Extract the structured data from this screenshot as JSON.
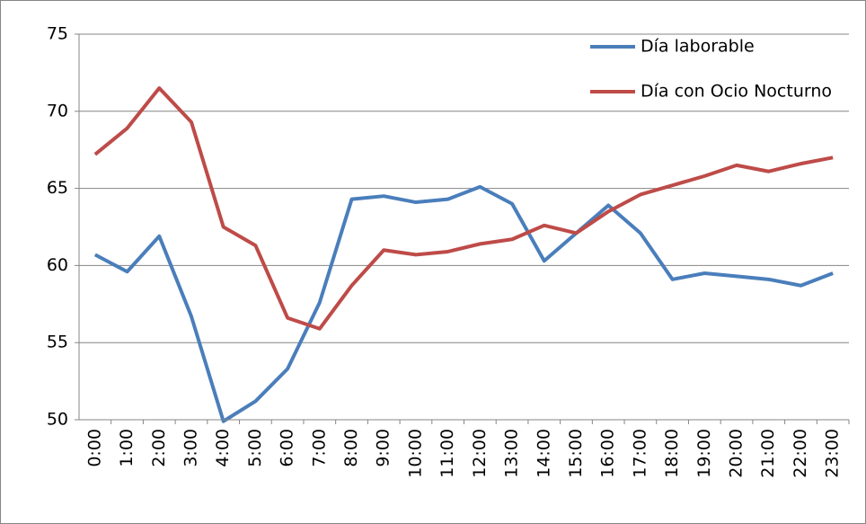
{
  "chart_data": {
    "type": "line",
    "categories": [
      "0:00",
      "1:00",
      "2:00",
      "3:00",
      "4:00",
      "5:00",
      "6:00",
      "7:00",
      "8:00",
      "9:00",
      "10:00",
      "11:00",
      "12:00",
      "13:00",
      "14:00",
      "15:00",
      "16:00",
      "17:00",
      "18:00",
      "19:00",
      "20:00",
      "21:00",
      "22:00",
      "23:00"
    ],
    "series": [
      {
        "name": "Día laborable",
        "color": "#4a7ebb",
        "values": [
          60.7,
          59.6,
          61.9,
          56.7,
          49.9,
          51.2,
          53.3,
          57.6,
          64.3,
          64.5,
          64.1,
          64.3,
          65.1,
          64.0,
          60.3,
          62.1,
          63.9,
          62.1,
          59.1,
          59.5,
          59.3,
          59.1,
          58.7,
          59.5
        ]
      },
      {
        "name": "Día con Ocio Nocturno",
        "color": "#be4b48",
        "values": [
          67.2,
          68.9,
          71.5,
          69.3,
          62.5,
          61.3,
          56.6,
          55.9,
          58.7,
          61.0,
          60.7,
          60.9,
          61.4,
          61.7,
          62.6,
          62.1,
          63.5,
          64.6,
          65.2,
          65.8,
          66.5,
          66.1,
          66.6,
          67.0
        ]
      }
    ],
    "ylim": [
      50,
      75
    ],
    "yticks": [
      50,
      55,
      60,
      65,
      70,
      75
    ],
    "grid": true,
    "legend": "top-right"
  }
}
